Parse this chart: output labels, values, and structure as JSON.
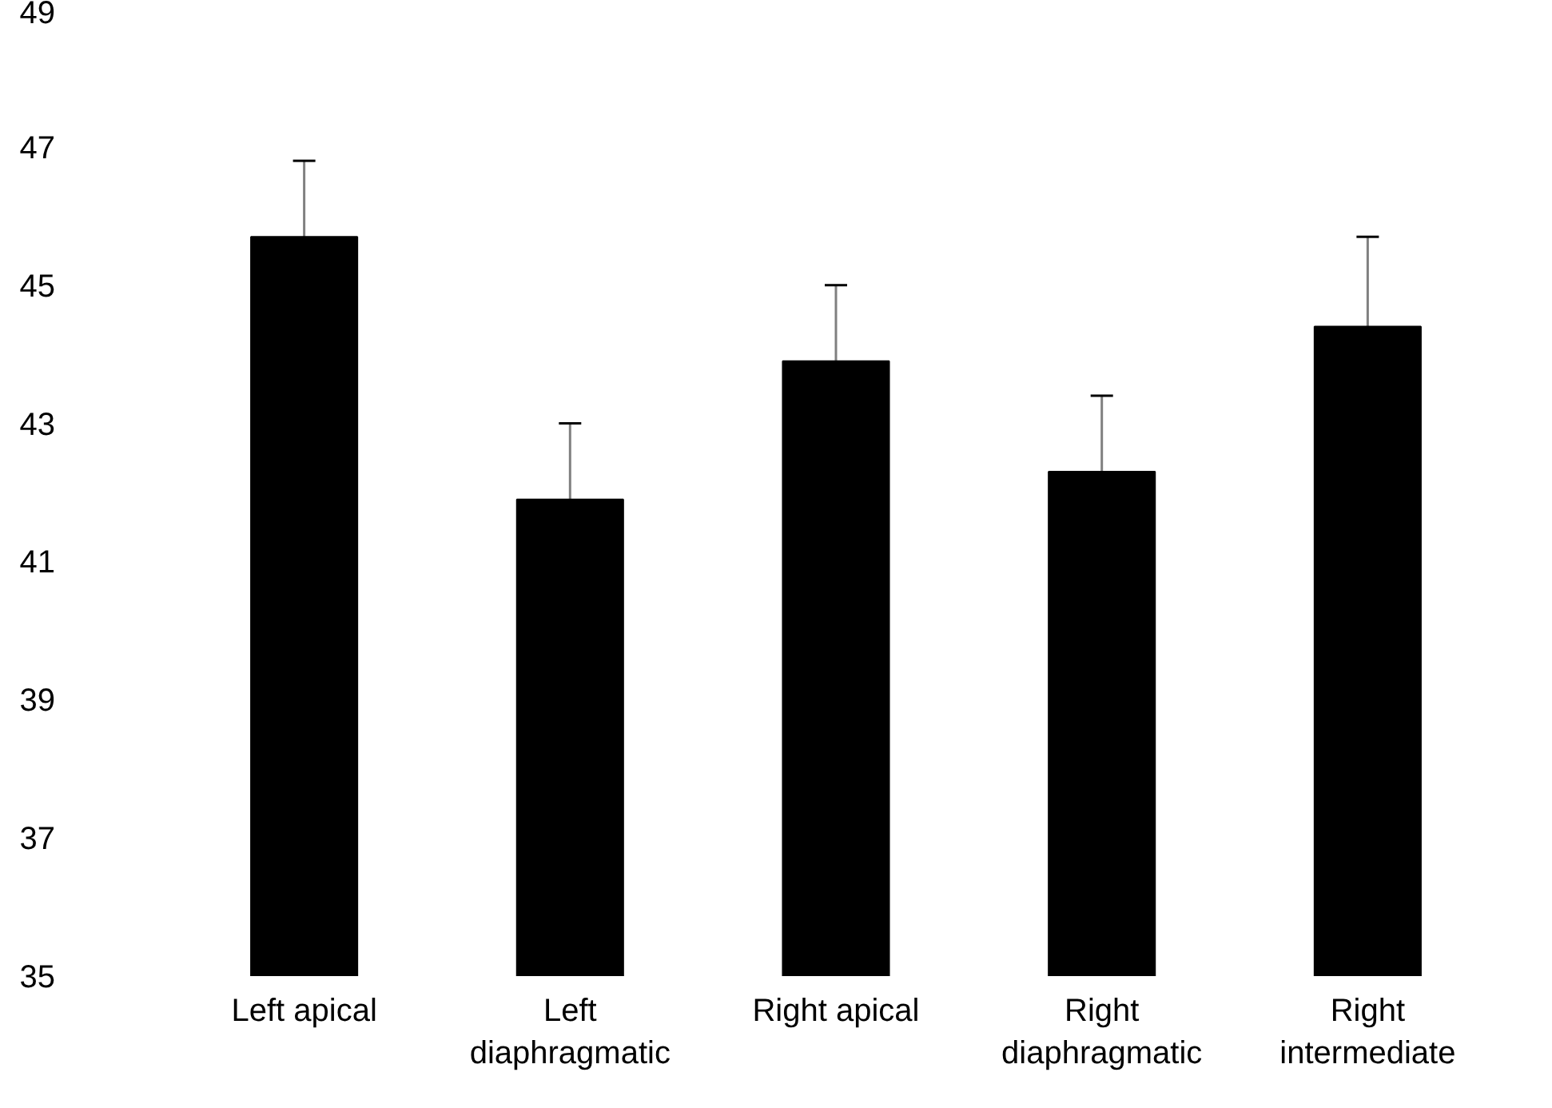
{
  "chart_data": {
    "type": "bar",
    "categories": [
      "Left apical",
      "Left diaphragmatic",
      "Right apical",
      "Right diaphragmatic",
      "Right intermediate"
    ],
    "values": [
      45.7,
      41.9,
      43.9,
      42.3,
      44.4
    ],
    "errors": [
      1.1,
      1.1,
      1.1,
      1.1,
      1.3
    ],
    "color": "#000000",
    "ylim": [
      35,
      49
    ],
    "yticks": [
      35,
      37,
      39,
      41,
      43,
      45,
      47,
      49
    ],
    "grid": false
  }
}
